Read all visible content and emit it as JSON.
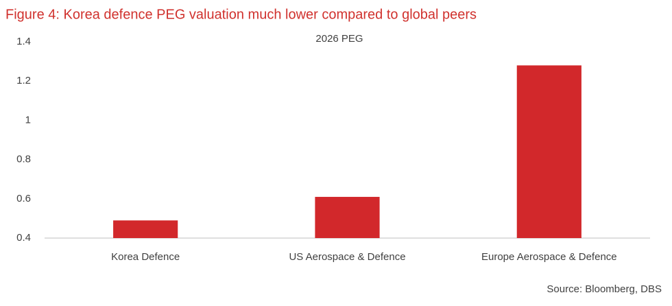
{
  "chart_data": {
    "type": "bar",
    "title": "Figure 4: Korea defence PEG valuation much lower compared to global peers",
    "subtitle": "2026 PEG",
    "source": "Source: Bloomberg, DBS",
    "categories": [
      "Korea Defence",
      "US Aerospace & Defence",
      "Europe Aerospace & Defence"
    ],
    "values": [
      0.49,
      0.61,
      1.28
    ],
    "color": "#d2282b",
    "ylim": [
      0.4,
      1.4
    ],
    "yticks": [
      0.4,
      0.6,
      0.8,
      1,
      1.2,
      1.4
    ],
    "grid": false
  }
}
